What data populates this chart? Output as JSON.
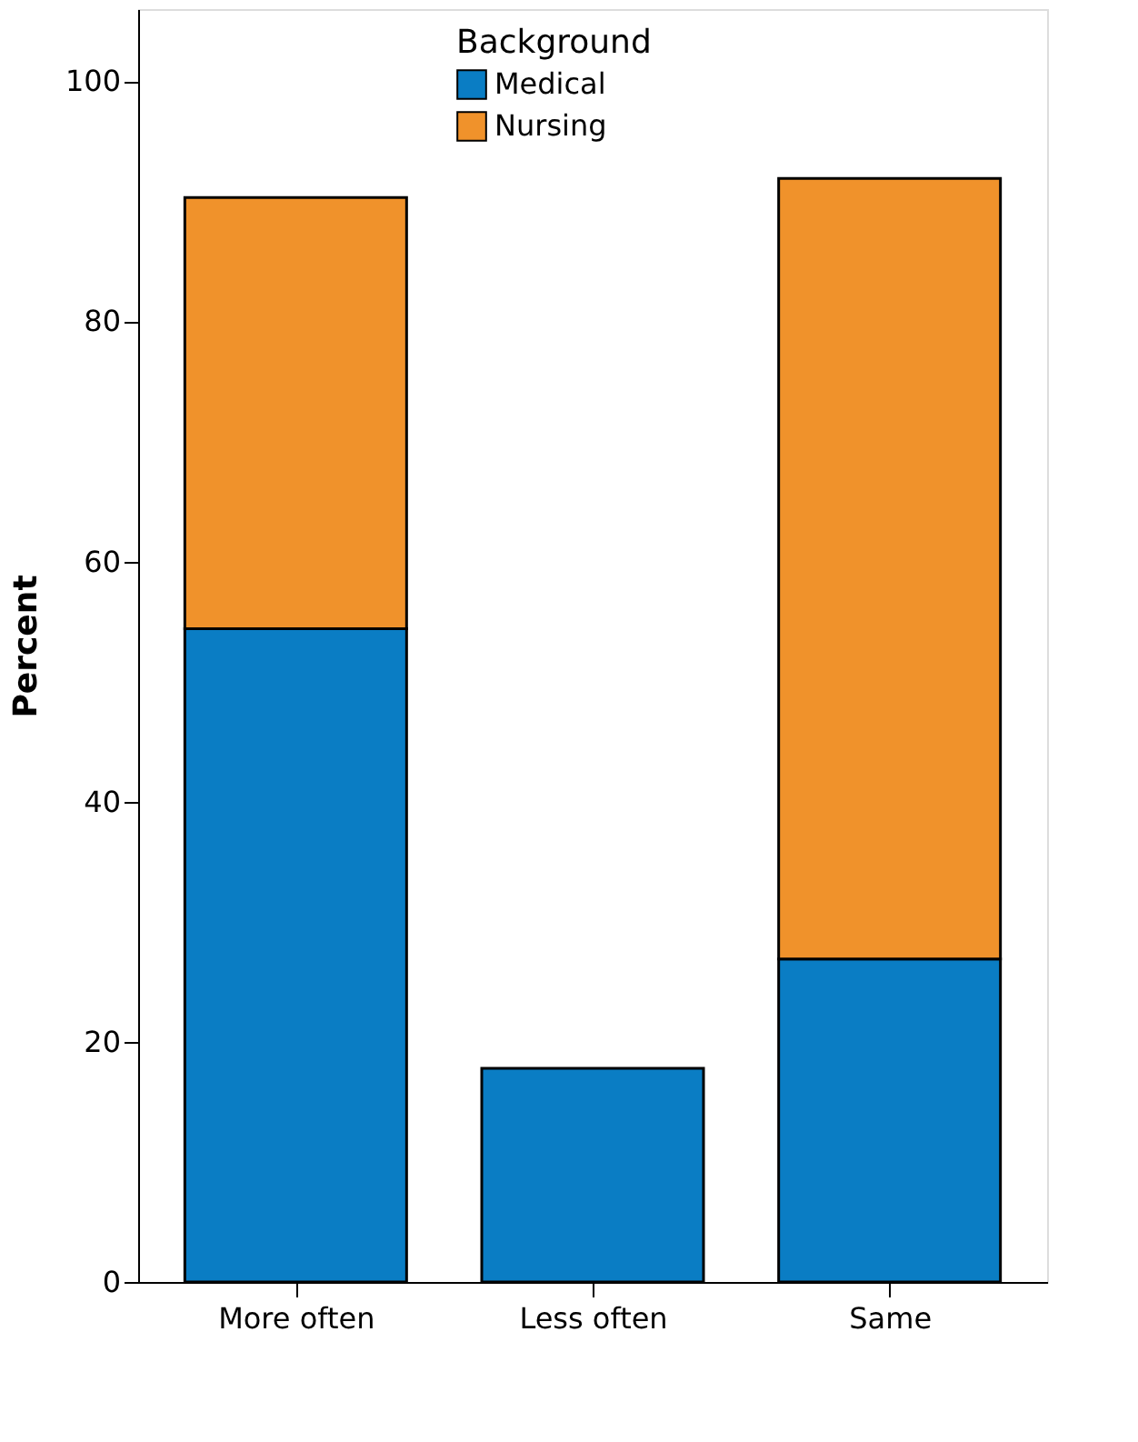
{
  "chart_data": {
    "type": "bar",
    "stacked": true,
    "ylabel": "Percent",
    "legend_title": "Background",
    "legend": "top",
    "categories": [
      "More often",
      "Less often",
      "Same"
    ],
    "series": [
      {
        "name": "Medical",
        "color": "#0a7dc4",
        "values": [
          54.4,
          17.8,
          26.9
        ]
      },
      {
        "name": "Nursing",
        "color": "#f0922b",
        "values": [
          35.9,
          null,
          65.0
        ]
      }
    ],
    "ylim": [
      0,
      106
    ],
    "yticks": [
      0,
      20,
      40,
      60,
      80,
      100
    ],
    "grid": false
  }
}
